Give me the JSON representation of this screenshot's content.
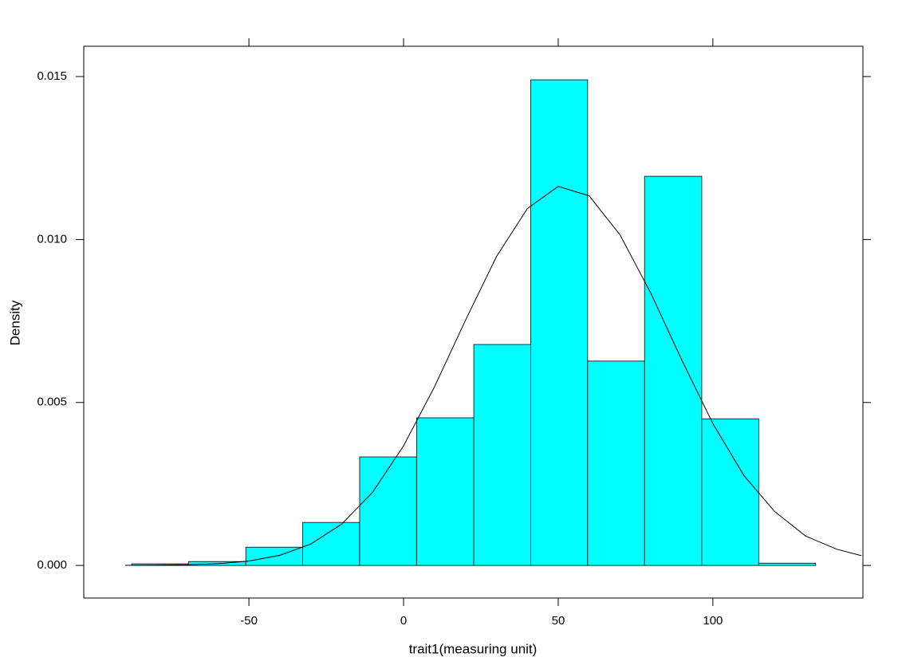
{
  "chart_data": {
    "type": "histogram",
    "xlabel": "trait1(measuring unit)",
    "ylabel": "Density",
    "bins": [
      -87.9,
      -69.5,
      -51.0,
      -32.6,
      -14.2,
      4.2,
      22.7,
      41.1,
      59.5,
      77.9,
      96.4,
      114.8,
      133.2
    ],
    "values": [
      5e-05,
      0.00012,
      0.00056,
      0.00132,
      0.00333,
      0.00453,
      0.00678,
      0.0149,
      0.00627,
      0.01194,
      0.0045,
      7e-05
    ],
    "color": "#00ffff",
    "density": {
      "color": "#000000",
      "x": [
        -90,
        -80,
        -70,
        -60,
        -50,
        -40,
        -30,
        -20,
        -10,
        0,
        10,
        20,
        30,
        40,
        50,
        60,
        70,
        80,
        90,
        100,
        110,
        120,
        130,
        140,
        148
      ],
      "values": [
        2e-06,
        7e-06,
        2e-05,
        5.5e-05,
        0.000136,
        0.000312,
        0.000657,
        0.00127,
        0.00225,
        0.00367,
        0.00548,
        0.00752,
        0.00947,
        0.01095,
        0.01163,
        0.01134,
        0.01014,
        0.00834,
        0.00629,
        0.00435,
        0.00276,
        0.00165,
        0.0009,
        0.0005,
        0.0003
      ]
    },
    "xlim": [
      -103.4,
      148.5
    ],
    "ylim": [
      -0.001,
      0.01593
    ],
    "xticks": [
      -50,
      0,
      50,
      100
    ],
    "yticks": [
      {
        "value": 0,
        "label": "0.000"
      },
      {
        "value": 0.005,
        "label": "0.005"
      },
      {
        "value": 0.01,
        "label": "0.010"
      },
      {
        "value": 0.015,
        "label": "0.015"
      }
    ]
  }
}
